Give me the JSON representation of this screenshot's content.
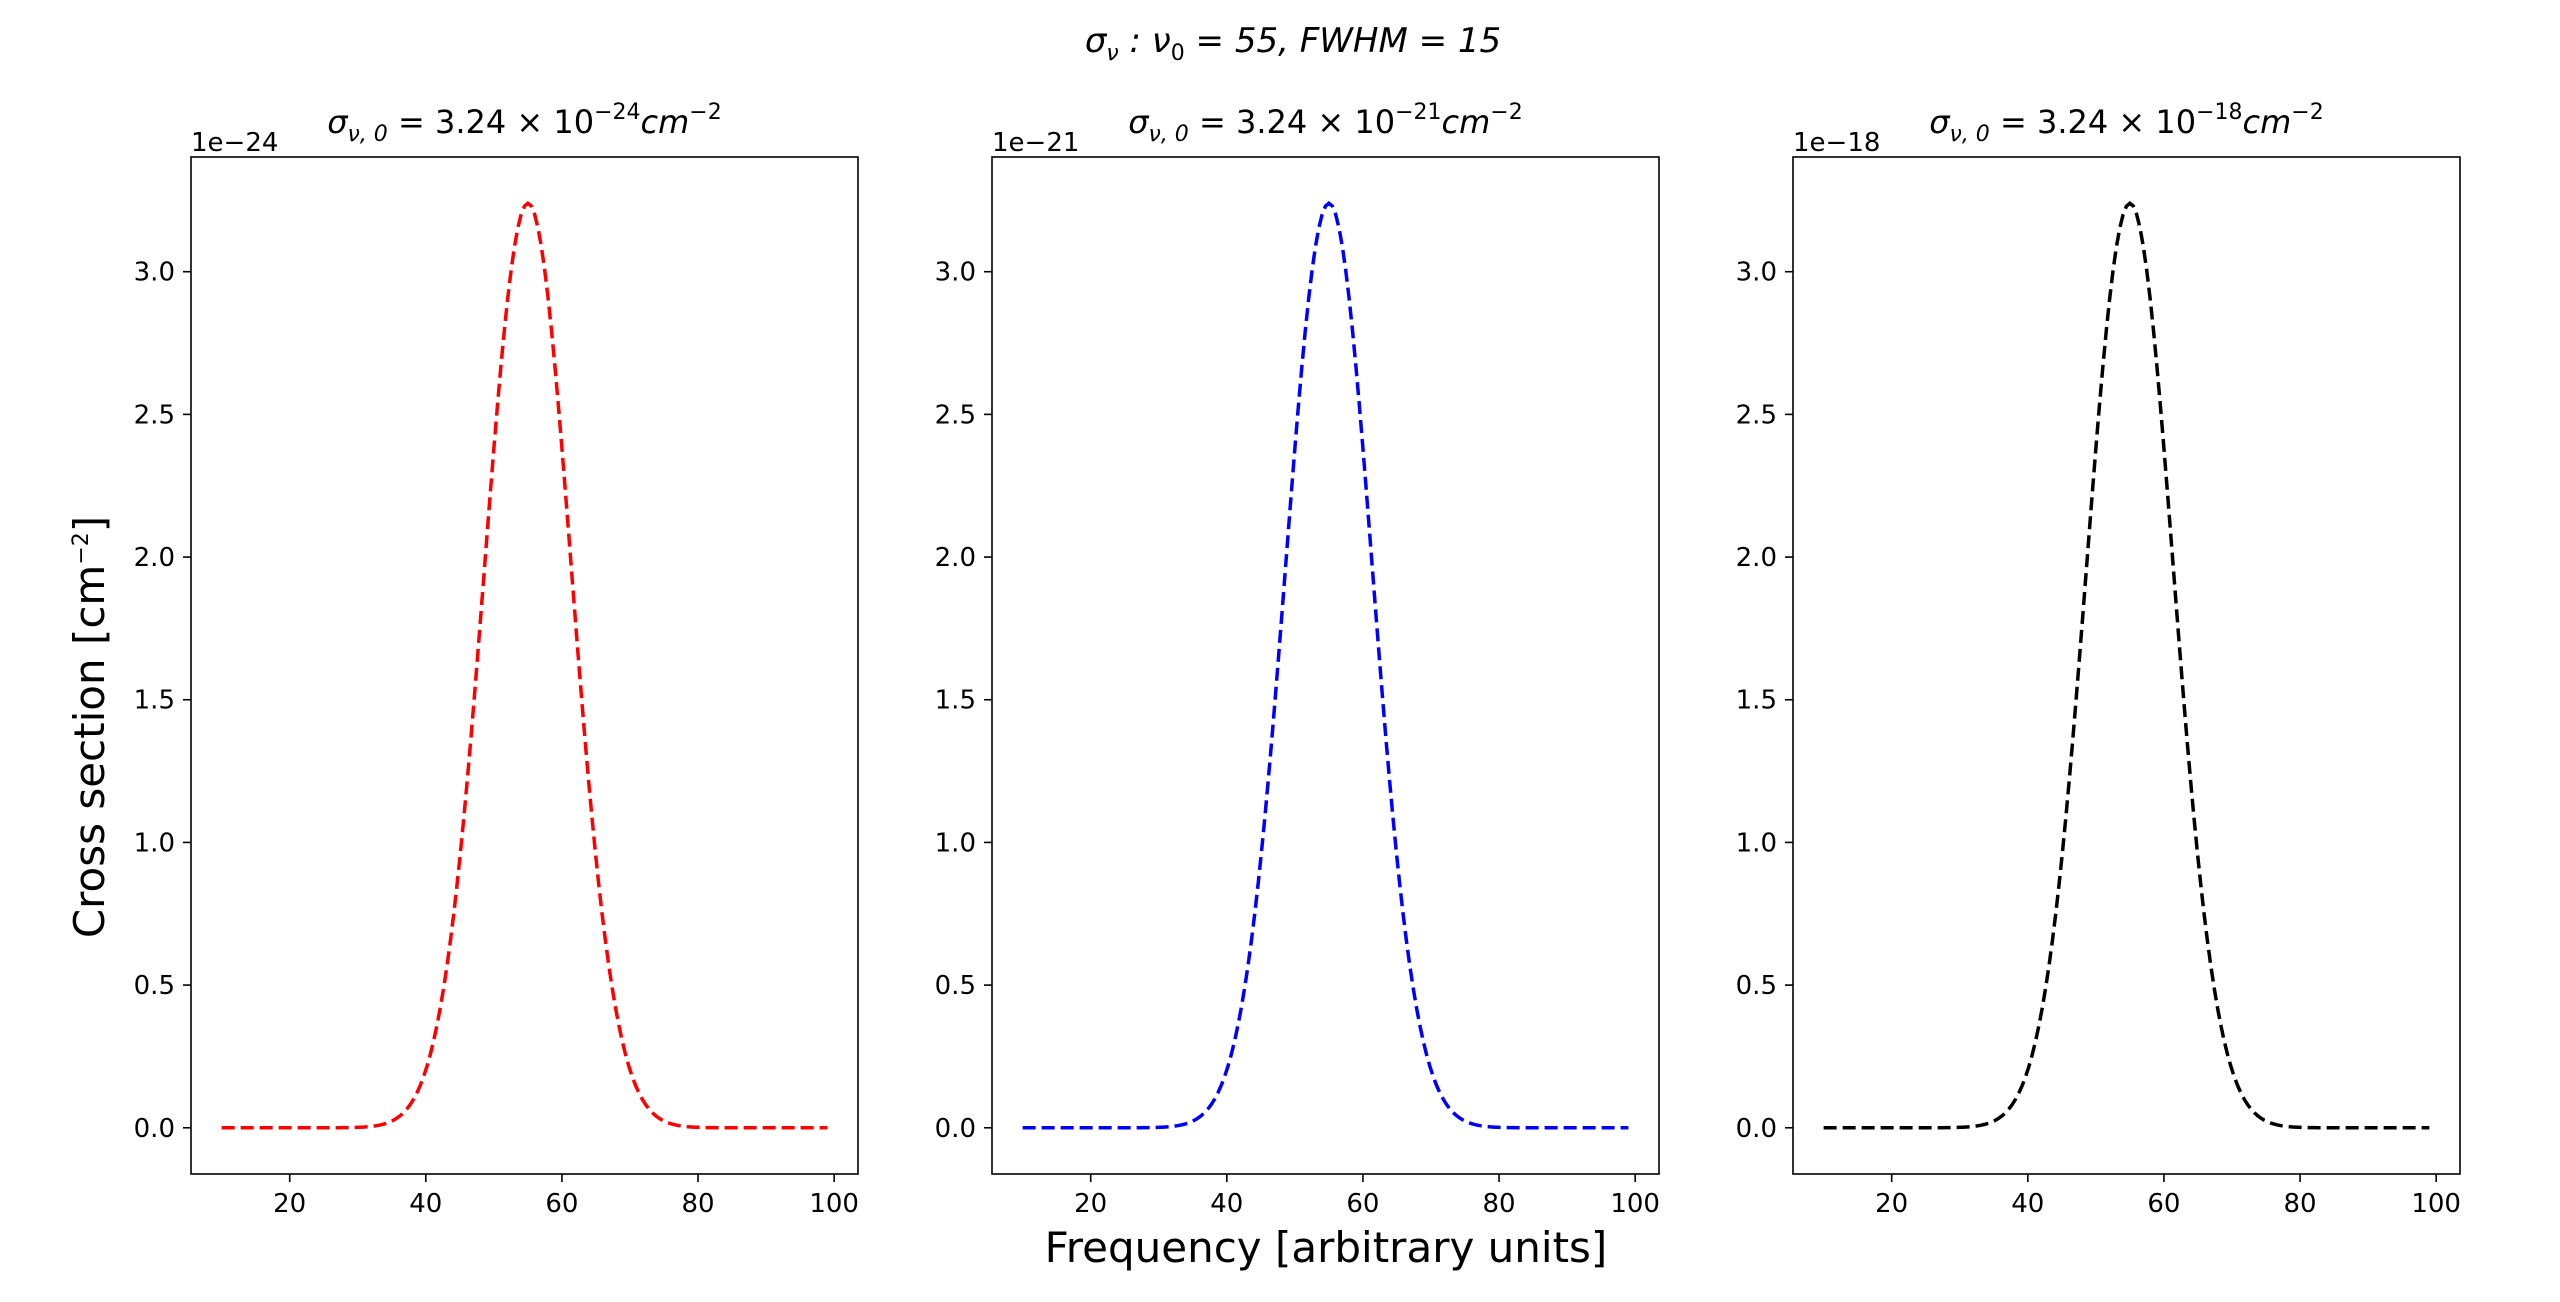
{
  "figure": {
    "suptitle": {
      "main": "σ",
      "sub": "ν",
      "mid": " : ν",
      "sub2": "0",
      "rest": " = 55, FWHM = 15"
    },
    "xlabel": "Frequency [arbitrary units]",
    "ylabel": "Cross section [cm",
    "ylabel_sup": "−2",
    "ylabel_end": "]"
  },
  "chart_data": [
    {
      "type": "line",
      "title": {
        "sigma": "σ",
        "sub": "ν, 0",
        "eq": " = 3.24 × 10",
        "exp": "−24",
        "unit": "cm",
        "unit_exp": "−2"
      },
      "multiplier": "1e−24",
      "color": "#ff0000",
      "line_style": "dashed",
      "center": 55,
      "fwhm": 15,
      "peak": 3.24,
      "x_range": [
        10,
        99
      ],
      "xlim": [
        5.5,
        103.5
      ],
      "ylim": [
        -0.162,
        3.402
      ],
      "xticks": [
        20,
        40,
        60,
        80,
        100
      ],
      "yticks": [
        "0.0",
        "0.5",
        "1.0",
        "1.5",
        "2.0",
        "2.5",
        "3.0"
      ]
    },
    {
      "type": "line",
      "title": {
        "sigma": "σ",
        "sub": "ν, 0",
        "eq": " = 3.24 × 10",
        "exp": "−21",
        "unit": "cm",
        "unit_exp": "−2"
      },
      "multiplier": "1e−21",
      "color": "#0000ff",
      "line_style": "dashed",
      "center": 55,
      "fwhm": 15,
      "peak": 3.24,
      "x_range": [
        10,
        99
      ],
      "xlim": [
        5.5,
        103.5
      ],
      "ylim": [
        -0.162,
        3.402
      ],
      "xticks": [
        20,
        40,
        60,
        80,
        100
      ],
      "yticks": [
        "0.0",
        "0.5",
        "1.0",
        "1.5",
        "2.0",
        "2.5",
        "3.0"
      ]
    },
    {
      "type": "line",
      "title": {
        "sigma": "σ",
        "sub": "ν, 0",
        "eq": " = 3.24 × 10",
        "exp": "−18",
        "unit": "cm",
        "unit_exp": "−2"
      },
      "multiplier": "1e−18",
      "color": "#000000",
      "line_style": "dashed",
      "center": 55,
      "fwhm": 15,
      "peak": 3.24,
      "x_range": [
        10,
        99
      ],
      "xlim": [
        5.5,
        103.5
      ],
      "ylim": [
        -0.162,
        3.402
      ],
      "xticks": [
        20,
        40,
        60,
        80,
        100
      ],
      "yticks": [
        "0.0",
        "0.5",
        "1.0",
        "1.5",
        "2.0",
        "2.5",
        "3.0"
      ]
    }
  ]
}
